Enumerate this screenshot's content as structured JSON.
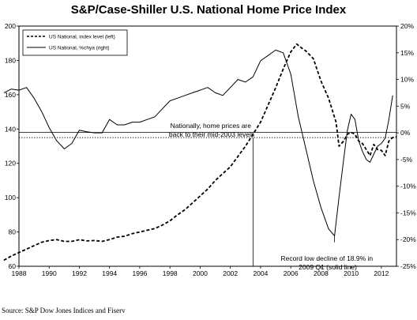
{
  "chart_data": {
    "type": "line",
    "title": "S&P/Case-Shiller U.S. National Home Price Index",
    "source": "Source: S&P Dow Jones Indices and Fiserv",
    "x_ticks": [
      "1988",
      "1990",
      "1992",
      "1994",
      "1996",
      "1998",
      "2000",
      "2002",
      "2004",
      "2006",
      "2008",
      "2010",
      "2012"
    ],
    "y_left_ticks": [
      "60",
      "80",
      "100",
      "120",
      "140",
      "160",
      "180",
      "200"
    ],
    "y_right_ticks": [
      "-25%",
      "-20%",
      "-15%",
      "-10%",
      "-5%",
      "0%",
      "5%",
      "10%",
      "15%",
      "20%"
    ],
    "y_left_range": [
      60,
      200
    ],
    "y_right_range": [
      -25,
      20
    ],
    "x_range": [
      1988,
      2013
    ],
    "legend_position": "top-left",
    "grid": false,
    "series": [
      {
        "name": "US National, index level (left)",
        "axis": "left",
        "style": "dashed",
        "points": [
          [
            1987.0,
            63.5
          ],
          [
            1987.5,
            66.0
          ],
          [
            1988.0,
            68.0
          ],
          [
            1988.5,
            70.0
          ],
          [
            1989.0,
            72.0
          ],
          [
            1989.5,
            74.0
          ],
          [
            1990.0,
            75.0
          ],
          [
            1990.5,
            75.5
          ],
          [
            1991.0,
            74.5
          ],
          [
            1991.5,
            74.5
          ],
          [
            1992.0,
            75.5
          ],
          [
            1992.5,
            74.8
          ],
          [
            1993.0,
            75.0
          ],
          [
            1993.5,
            74.5
          ],
          [
            1994.0,
            75.5
          ],
          [
            1994.5,
            77.0
          ],
          [
            1995.0,
            77.5
          ],
          [
            1995.5,
            79.0
          ],
          [
            1996.0,
            80.0
          ],
          [
            1996.5,
            81.0
          ],
          [
            1997.0,
            82.0
          ],
          [
            1997.5,
            84.0
          ],
          [
            1998.0,
            86.5
          ],
          [
            1998.5,
            90.0
          ],
          [
            1999.0,
            93.0
          ],
          [
            1999.5,
            97.0
          ],
          [
            2000.0,
            101.0
          ],
          [
            2000.5,
            105.0
          ],
          [
            2001.0,
            110.0
          ],
          [
            2001.5,
            114.0
          ],
          [
            2002.0,
            118.0
          ],
          [
            2002.5,
            124.0
          ],
          [
            2003.0,
            130.0
          ],
          [
            2003.5,
            137.0
          ],
          [
            2004.0,
            144.0
          ],
          [
            2004.5,
            154.0
          ],
          [
            2005.0,
            164.0
          ],
          [
            2005.5,
            175.0
          ],
          [
            2006.0,
            185.0
          ],
          [
            2006.4,
            189.5
          ],
          [
            2006.75,
            187.0
          ],
          [
            2007.0,
            185.5
          ],
          [
            2007.5,
            181.0
          ],
          [
            2008.0,
            168.0
          ],
          [
            2008.5,
            158.0
          ],
          [
            2009.0,
            144.0
          ],
          [
            2009.2,
            130.0
          ],
          [
            2009.5,
            133.0
          ],
          [
            2009.75,
            137.0
          ],
          [
            2010.0,
            138.0
          ],
          [
            2010.25,
            137.0
          ],
          [
            2010.5,
            133.0
          ],
          [
            2010.75,
            131.5
          ],
          [
            2011.0,
            128.0
          ],
          [
            2011.25,
            124.5
          ],
          [
            2011.5,
            131.0
          ],
          [
            2011.75,
            128.0
          ],
          [
            2012.0,
            127.5
          ],
          [
            2012.25,
            124.5
          ],
          [
            2012.5,
            133.0
          ],
          [
            2012.75,
            135.0
          ],
          [
            2013.0,
            135.5
          ]
        ]
      },
      {
        "name": "US National, %chya (right)",
        "axis": "right",
        "style": "solid",
        "points": [
          [
            1987.0,
            7.5
          ],
          [
            1987.5,
            8.2
          ],
          [
            1988.0,
            8.0
          ],
          [
            1988.5,
            8.5
          ],
          [
            1989.0,
            6.5
          ],
          [
            1989.5,
            4.0
          ],
          [
            1990.0,
            1.0
          ],
          [
            1990.5,
            -1.5
          ],
          [
            1991.0,
            -3.0
          ],
          [
            1991.5,
            -2.0
          ],
          [
            1992.0,
            0.5
          ],
          [
            1992.5,
            0.2
          ],
          [
            1993.0,
            0.0
          ],
          [
            1993.5,
            0.0
          ],
          [
            1994.0,
            2.5
          ],
          [
            1994.5,
            1.5
          ],
          [
            1995.0,
            1.5
          ],
          [
            1995.5,
            2.0
          ],
          [
            1996.0,
            2.0
          ],
          [
            1996.5,
            2.5
          ],
          [
            1997.0,
            3.0
          ],
          [
            1997.5,
            4.5
          ],
          [
            1998.0,
            6.0
          ],
          [
            1998.5,
            6.5
          ],
          [
            1999.0,
            7.0
          ],
          [
            1999.5,
            7.5
          ],
          [
            2000.0,
            8.0
          ],
          [
            2000.5,
            8.5
          ],
          [
            2001.0,
            7.5
          ],
          [
            2001.5,
            7.0
          ],
          [
            2002.0,
            8.5
          ],
          [
            2002.5,
            10.0
          ],
          [
            2003.0,
            9.5
          ],
          [
            2003.5,
            10.5
          ],
          [
            2004.0,
            13.5
          ],
          [
            2004.5,
            14.5
          ],
          [
            2005.0,
            15.5
          ],
          [
            2005.5,
            15.0
          ],
          [
            2006.0,
            11.0
          ],
          [
            2006.5,
            3.0
          ],
          [
            2007.0,
            -3.0
          ],
          [
            2007.5,
            -9.0
          ],
          [
            2008.0,
            -14.0
          ],
          [
            2008.5,
            -18.0
          ],
          [
            2008.9,
            -19.3
          ],
          [
            2009.2,
            -12.0
          ],
          [
            2009.5,
            -5.0
          ],
          [
            2009.75,
            0.5
          ],
          [
            2010.0,
            3.5
          ],
          [
            2010.25,
            2.5
          ],
          [
            2010.5,
            -1.5
          ],
          [
            2010.75,
            -3.5
          ],
          [
            2011.0,
            -5.0
          ],
          [
            2011.25,
            -5.5
          ],
          [
            2011.5,
            -4.0
          ],
          [
            2011.75,
            -2.5
          ],
          [
            2012.0,
            -2.0
          ],
          [
            2012.25,
            -1.0
          ],
          [
            2012.5,
            2.5
          ],
          [
            2012.75,
            7.0
          ]
        ]
      }
    ],
    "reference_lines": [
      {
        "axis": "left",
        "value": 138,
        "style": "solid"
      },
      {
        "axis": "left",
        "value": 135,
        "style": "dotted"
      }
    ],
    "vertical_markers": [
      2003.5,
      2008.9
    ],
    "annotations": [
      {
        "text": "Nationally, home prices are back to their mid-2003 levels"
      },
      {
        "text": "Record low decline of 18.9% in 2009 Q1 (solid line)"
      }
    ]
  }
}
